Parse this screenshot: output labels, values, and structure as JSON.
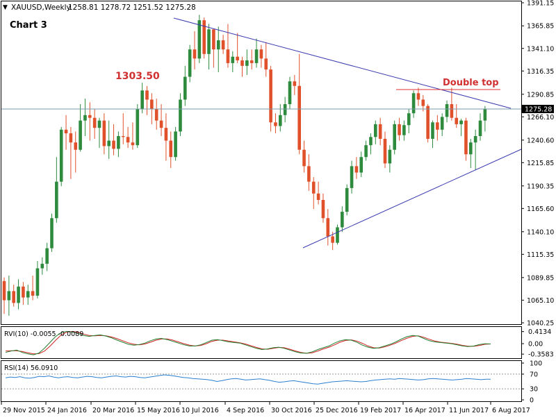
{
  "chart_data": {
    "type": "candlestick",
    "symbol_header": "XAUUSD,Weekly",
    "ohlc_header": "1258.81 1278.72 1251.52 1275.28",
    "title": "Chart 3",
    "last_price_label": "1275.28",
    "ylim": [
      1040.25,
      1391.15
    ],
    "y_ticks": [
      "1391.15",
      "1365.85",
      "1341.10",
      "1316.35",
      "1290.85",
      "1266.10",
      "1240.60",
      "1215.85",
      "1190.35",
      "1165.60",
      "1140.10",
      "1115.35",
      "1089.85",
      "1065.10",
      "1040.25"
    ],
    "x_ticks": [
      "29 Nov 2015",
      "24 Jan 2016",
      "20 Mar 2016",
      "15 May 2016",
      "10 Jul 2016",
      "4 Sep 2016",
      "30 Oct 2016",
      "25 Dec 2016",
      "19 Feb 2017",
      "16 Apr 2017",
      "11 Jun 2017",
      "6 Aug 2017"
    ],
    "candles": [
      [
        1086,
        1090,
        1050,
        1065
      ],
      [
        1065,
        1092,
        1048,
        1075
      ],
      [
        1075,
        1082,
        1058,
        1062
      ],
      [
        1062,
        1088,
        1055,
        1080
      ],
      [
        1080,
        1085,
        1060,
        1068
      ],
      [
        1068,
        1082,
        1060,
        1075
      ],
      [
        1075,
        1092,
        1065,
        1070
      ],
      [
        1070,
        1108,
        1067,
        1100
      ],
      [
        1100,
        1112,
        1093,
        1105
      ],
      [
        1105,
        1128,
        1097,
        1122
      ],
      [
        1122,
        1160,
        1118,
        1155
      ],
      [
        1155,
        1222,
        1150,
        1195
      ],
      [
        1195,
        1255,
        1190,
        1252
      ],
      [
        1252,
        1268,
        1230,
        1248
      ],
      [
        1248,
        1255,
        1198,
        1238
      ],
      [
        1238,
        1250,
        1205,
        1230
      ],
      [
        1230,
        1280,
        1228,
        1262
      ],
      [
        1262,
        1286,
        1245,
        1268
      ],
      [
        1268,
        1282,
        1240,
        1265
      ],
      [
        1265,
        1275,
        1242,
        1254
      ],
      [
        1254,
        1265,
        1232,
        1262
      ],
      [
        1262,
        1270,
        1225,
        1234
      ],
      [
        1234,
        1262,
        1220,
        1240
      ],
      [
        1240,
        1258,
        1224,
        1231
      ],
      [
        1231,
        1250,
        1222,
        1245
      ],
      [
        1245,
        1270,
        1236,
        1244
      ],
      [
        1244,
        1255,
        1232,
        1238
      ],
      [
        1238,
        1260,
        1230,
        1235
      ],
      [
        1235,
        1280,
        1232,
        1275
      ],
      [
        1275,
        1303.5,
        1270,
        1295
      ],
      [
        1295,
        1300,
        1268,
        1285
      ],
      [
        1285,
        1292,
        1258,
        1275
      ],
      [
        1275,
        1286,
        1252,
        1262
      ],
      [
        1262,
        1280,
        1245,
        1254
      ],
      [
        1254,
        1270,
        1218,
        1240
      ],
      [
        1240,
        1250,
        1210,
        1222
      ],
      [
        1222,
        1255,
        1218,
        1250
      ],
      [
        1250,
        1292,
        1245,
        1285
      ],
      [
        1285,
        1322,
        1278,
        1310
      ],
      [
        1310,
        1345,
        1304,
        1340
      ],
      [
        1340,
        1360,
        1318,
        1330
      ],
      [
        1330,
        1378,
        1325,
        1372
      ],
      [
        1372,
        1375,
        1330,
        1335
      ],
      [
        1335,
        1368,
        1318,
        1362
      ],
      [
        1362,
        1362,
        1320,
        1340
      ],
      [
        1340,
        1365,
        1315,
        1350
      ],
      [
        1350,
        1356,
        1335,
        1340
      ],
      [
        1340,
        1368,
        1320,
        1325
      ],
      [
        1325,
        1338,
        1315,
        1332
      ],
      [
        1332,
        1358,
        1325,
        1328
      ],
      [
        1328,
        1332,
        1310,
        1322
      ],
      [
        1322,
        1340,
        1312,
        1328
      ],
      [
        1328,
        1340,
        1318,
        1325
      ],
      [
        1325,
        1352,
        1320,
        1340
      ],
      [
        1340,
        1345,
        1320,
        1330
      ],
      [
        1330,
        1348,
        1310,
        1318
      ],
      [
        1318,
        1322,
        1250,
        1260
      ],
      [
        1260,
        1270,
        1248,
        1256
      ],
      [
        1256,
        1280,
        1250,
        1268
      ],
      [
        1268,
        1288,
        1260,
        1280
      ],
      [
        1280,
        1310,
        1275,
        1305
      ],
      [
        1305,
        1312,
        1290,
        1300
      ],
      [
        1300,
        1335,
        1225,
        1230
      ],
      [
        1230,
        1240,
        1205,
        1212
      ],
      [
        1212,
        1225,
        1185,
        1195
      ],
      [
        1195,
        1200,
        1165,
        1182
      ],
      [
        1182,
        1195,
        1170,
        1175
      ],
      [
        1175,
        1182,
        1150,
        1155
      ],
      [
        1155,
        1165,
        1125,
        1135
      ],
      [
        1135,
        1140,
        1120,
        1128
      ],
      [
        1128,
        1148,
        1126,
        1145
      ],
      [
        1145,
        1168,
        1140,
        1162
      ],
      [
        1162,
        1192,
        1158,
        1188
      ],
      [
        1188,
        1218,
        1182,
        1212
      ],
      [
        1212,
        1222,
        1198,
        1205
      ],
      [
        1205,
        1228,
        1200,
        1222
      ],
      [
        1222,
        1240,
        1218,
        1235
      ],
      [
        1235,
        1248,
        1225,
        1244
      ],
      [
        1244,
        1262,
        1236,
        1258
      ],
      [
        1258,
        1265,
        1235,
        1242
      ],
      [
        1242,
        1250,
        1210,
        1215
      ],
      [
        1215,
        1235,
        1205,
        1230
      ],
      [
        1230,
        1262,
        1225,
        1258
      ],
      [
        1258,
        1265,
        1240,
        1246
      ],
      [
        1246,
        1262,
        1240,
        1257
      ],
      [
        1257,
        1275,
        1248,
        1270
      ],
      [
        1270,
        1295,
        1265,
        1292
      ],
      [
        1292,
        1298,
        1278,
        1285
      ],
      [
        1285,
        1290,
        1272,
        1278
      ],
      [
        1278,
        1280,
        1238,
        1242
      ],
      [
        1242,
        1262,
        1232,
        1260
      ],
      [
        1260,
        1268,
        1240,
        1252
      ],
      [
        1252,
        1270,
        1245,
        1266
      ],
      [
        1266,
        1284,
        1260,
        1280
      ],
      [
        1280,
        1298,
        1262,
        1265
      ],
      [
        1265,
        1280,
        1254,
        1258
      ],
      [
        1258,
        1264,
        1245,
        1262
      ],
      [
        1262,
        1265,
        1218,
        1225
      ],
      [
        1225,
        1242,
        1210,
        1238
      ],
      [
        1238,
        1252,
        1208,
        1245
      ],
      [
        1245,
        1270,
        1240,
        1262
      ],
      [
        1262,
        1278,
        1250,
        1275
      ]
    ],
    "rvi": {
      "label": "RVI(10) -0.0055 -0.0089",
      "ticks": [
        "0.4134",
        "0.00",
        "-0.3583"
      ],
      "ylim": [
        -0.45,
        0.5
      ],
      "main": [
        -0.3,
        -0.25,
        -0.22,
        -0.3,
        -0.35,
        -0.38,
        -0.32,
        -0.15,
        0.05,
        0.25,
        0.38,
        0.42,
        0.4,
        0.35,
        0.28,
        0.25,
        0.28,
        0.3,
        0.26,
        0.2,
        0.12,
        0.05,
        -0.02,
        -0.05,
        -0.03,
        0.02,
        0.1,
        0.16,
        0.18,
        0.14,
        0.08,
        0.02,
        -0.04,
        -0.08,
        -0.08,
        -0.04,
        0.04,
        0.12,
        0.14,
        0.1,
        0.06,
        0.04,
        0.02,
        -0.04,
        -0.1,
        -0.16,
        -0.2,
        -0.18,
        -0.14,
        -0.12,
        -0.16,
        -0.22,
        -0.28,
        -0.32,
        -0.33,
        -0.28,
        -0.2,
        -0.14,
        -0.08,
        0.02,
        0.1,
        0.14,
        0.12,
        0.05,
        -0.05,
        -0.12,
        -0.16,
        -0.14,
        -0.08,
        -0.02,
        0.06,
        0.16,
        0.24,
        0.28,
        0.26,
        0.18,
        0.1,
        0.06,
        0.04,
        0.02,
        0.0,
        -0.04,
        -0.08,
        -0.1,
        -0.08,
        -0.03,
        0.0,
        -0.01
      ],
      "signal": [
        -0.25,
        -0.24,
        -0.24,
        -0.27,
        -0.31,
        -0.35,
        -0.34,
        -0.25,
        -0.08,
        0.12,
        0.3,
        0.4,
        0.42,
        0.39,
        0.33,
        0.28,
        0.27,
        0.28,
        0.27,
        0.23,
        0.17,
        0.1,
        0.03,
        -0.02,
        -0.04,
        -0.01,
        0.05,
        0.12,
        0.16,
        0.16,
        0.12,
        0.06,
        0.0,
        -0.05,
        -0.08,
        -0.06,
        0.0,
        0.08,
        0.12,
        0.12,
        0.09,
        0.06,
        0.03,
        -0.01,
        -0.07,
        -0.13,
        -0.18,
        -0.19,
        -0.16,
        -0.13,
        -0.14,
        -0.19,
        -0.25,
        -0.3,
        -0.33,
        -0.31,
        -0.25,
        -0.18,
        -0.12,
        -0.04,
        0.05,
        0.11,
        0.13,
        0.09,
        0.01,
        -0.08,
        -0.14,
        -0.15,
        -0.11,
        -0.05,
        0.02,
        0.11,
        0.19,
        0.25,
        0.27,
        0.22,
        0.15,
        0.09,
        0.05,
        0.03,
        0.01,
        -0.02,
        -0.06,
        -0.09,
        -0.09,
        -0.06,
        -0.02,
        -0.01
      ]
    },
    "rsi": {
      "label": "RSI(14) 56.0910",
      "ticks": [
        "100",
        "70",
        "30",
        "0"
      ],
      "levels": [
        70,
        30
      ],
      "values": [
        60,
        62,
        61,
        63,
        60,
        59,
        61,
        64,
        63,
        65,
        62,
        60,
        62,
        63,
        61,
        60,
        62,
        64,
        63,
        61,
        60,
        62,
        64,
        65,
        63,
        62,
        64,
        63,
        61,
        60,
        62,
        64,
        66,
        68,
        67,
        65,
        63,
        61,
        60,
        58,
        57,
        56,
        55,
        53,
        50,
        52,
        55,
        57,
        58,
        56,
        54,
        55,
        56,
        57,
        55,
        53,
        50,
        48,
        49,
        51,
        52,
        50,
        48,
        46,
        44,
        43,
        45,
        47,
        49,
        50,
        51,
        52,
        51,
        50,
        49,
        50,
        52,
        54,
        55,
        56,
        57,
        56,
        58,
        57,
        56,
        55,
        54,
        55,
        57,
        58,
        57,
        56,
        55,
        54,
        55,
        56,
        58,
        57,
        56,
        55,
        56,
        56
      ]
    },
    "annotations": {
      "high_label": "1303.50",
      "double_top_label": "Double top"
    }
  }
}
